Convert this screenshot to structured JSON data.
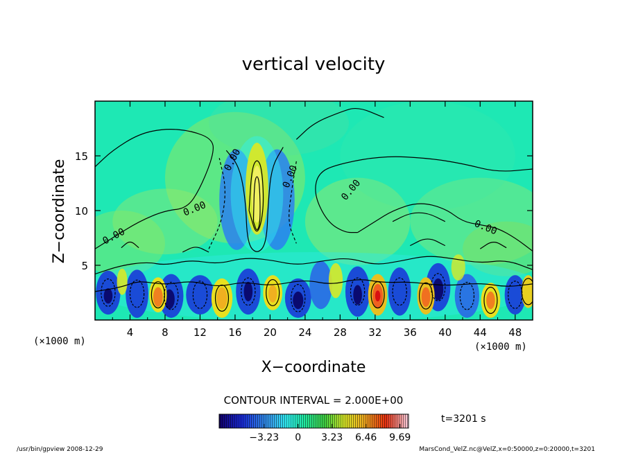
{
  "chart_data": {
    "type": "heatmap",
    "title": "vertical velocity",
    "xlabel": "X−coordinate",
    "ylabel": "Z−coordinate",
    "x_unit": "(×1000 m)",
    "y_unit": "(×1000 m)",
    "xlim": [
      0,
      50
    ],
    "ylim": [
      0,
      20
    ],
    "x_ticks": [
      4,
      8,
      12,
      16,
      20,
      24,
      28,
      32,
      36,
      40,
      44,
      48
    ],
    "y_ticks": [
      5,
      10,
      15
    ],
    "contour_interval_text": "CONTOUR INTERVAL = 2.000E+00",
    "colorbar_ticks": [
      "−3.23",
      "0",
      "3.23",
      "6.46",
      "9.69"
    ],
    "colorbar_range": [
      -7.5,
      10.5
    ],
    "contour_labels": [
      "0.00",
      "0.00",
      "0.00",
      "0.00",
      "0.00",
      "0.00"
    ],
    "time_label": "t=3201 s",
    "colors": {
      "background_field": "#1ee8b4",
      "positive": "#e8e020",
      "negative": "#1a3ad8"
    }
  },
  "footer": {
    "left": "/usr/bin/gpview   2008-12-29",
    "right": "MarsCond_VelZ.nc@VelZ,x=0:50000,z=0:20000,t=3201"
  }
}
